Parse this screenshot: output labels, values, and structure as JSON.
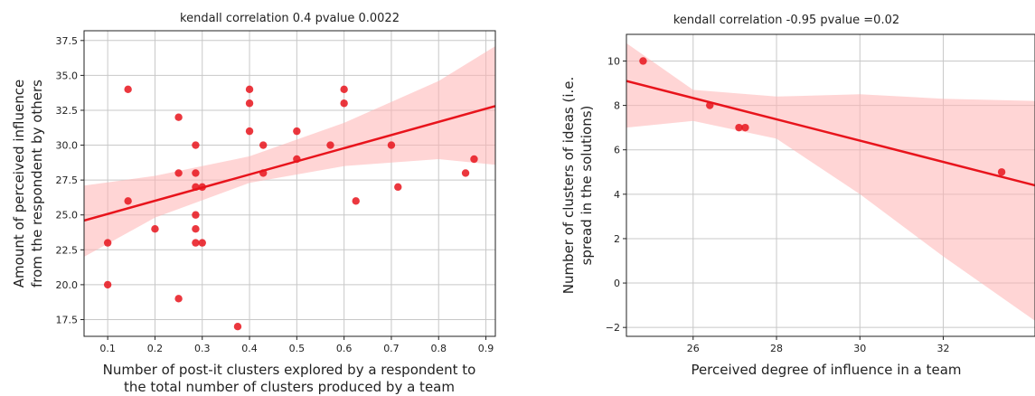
{
  "colors": {
    "points": "#e8141c",
    "fit": "#e8141c",
    "band": "#ffb3b3",
    "grid": "#c8c8c8"
  },
  "chart_data": [
    {
      "type": "scatter",
      "title": "kendall correlation 0.4 pvalue 0.0022",
      "xlabel_lines": [
        "Number of post-it clusters explored by a respondent to",
        "the total number of clusters produced by a team"
      ],
      "ylabel_lines": [
        "Amount of perceived influence",
        "from the respondent by others"
      ],
      "xlim": [
        0.05,
        0.92
      ],
      "ylim": [
        16.3,
        38.2
      ],
      "xticks": [
        0.1,
        0.2,
        0.3,
        0.4,
        0.5,
        0.6,
        0.7,
        0.8,
        0.9
      ],
      "xtick_labels": [
        "0.1",
        "0.2",
        "0.3",
        "0.4",
        "0.5",
        "0.6",
        "0.7",
        "0.8",
        "0.9"
      ],
      "yticks": [
        17.5,
        20.0,
        22.5,
        25.0,
        27.5,
        30.0,
        32.5,
        35.0,
        37.5
      ],
      "ytick_labels": [
        "17.5",
        "20.0",
        "22.5",
        "25.0",
        "27.5",
        "30.0",
        "32.5",
        "35.0",
        "37.5"
      ],
      "grid": true,
      "points": [
        [
          0.1,
          23
        ],
        [
          0.1,
          20
        ],
        [
          0.143,
          34
        ],
        [
          0.143,
          26
        ],
        [
          0.2,
          24
        ],
        [
          0.25,
          32
        ],
        [
          0.25,
          28
        ],
        [
          0.25,
          19
        ],
        [
          0.286,
          30
        ],
        [
          0.286,
          28
        ],
        [
          0.286,
          27
        ],
        [
          0.286,
          25
        ],
        [
          0.286,
          24
        ],
        [
          0.286,
          23
        ],
        [
          0.3,
          27
        ],
        [
          0.3,
          23
        ],
        [
          0.375,
          17
        ],
        [
          0.4,
          34
        ],
        [
          0.4,
          33
        ],
        [
          0.4,
          31
        ],
        [
          0.429,
          30
        ],
        [
          0.429,
          28
        ],
        [
          0.5,
          31
        ],
        [
          0.5,
          29
        ],
        [
          0.571,
          30
        ],
        [
          0.6,
          34
        ],
        [
          0.6,
          33
        ],
        [
          0.625,
          26
        ],
        [
          0.7,
          30
        ],
        [
          0.714,
          27
        ],
        [
          0.857,
          28
        ],
        [
          0.875,
          29
        ]
      ],
      "fit_line": {
        "x": [
          0.05,
          0.92
        ],
        "y": [
          24.6,
          32.8
        ]
      },
      "confidence_band": {
        "x": [
          0.05,
          0.2,
          0.4,
          0.6,
          0.8,
          0.92
        ],
        "lower": [
          22.0,
          24.8,
          27.3,
          28.5,
          29.0,
          28.6
        ],
        "upper": [
          27.1,
          27.8,
          29.2,
          31.6,
          34.6,
          37.1
        ]
      }
    },
    {
      "type": "scatter",
      "title": "kendall correlation -0.95 pvalue =0.02",
      "xlabel_lines": [
        "Perceived degree of influence in a team"
      ],
      "ylabel_lines": [
        "Number of clusters of ideas (i.e.",
        "spread in the solutions)"
      ],
      "xlim": [
        24.4,
        34.2
      ],
      "ylim": [
        -2.4,
        11.2
      ],
      "xticks": [
        26,
        28,
        30,
        32
      ],
      "xtick_labels": [
        "26",
        "28",
        "30",
        "32"
      ],
      "yticks": [
        -2,
        0,
        2,
        4,
        6,
        8,
        10
      ],
      "ytick_labels": [
        "−2",
        "0",
        "2",
        "4",
        "6",
        "8",
        "10"
      ],
      "grid": true,
      "points": [
        [
          24.8,
          10
        ],
        [
          26.4,
          8
        ],
        [
          27.1,
          7
        ],
        [
          27.25,
          7
        ],
        [
          33.4,
          5
        ]
      ],
      "fit_line": {
        "x": [
          24.4,
          34.2
        ],
        "y": [
          9.1,
          4.4
        ]
      },
      "confidence_band": {
        "x": [
          24.4,
          26,
          28,
          30,
          32,
          34.2
        ],
        "lower": [
          7.0,
          7.3,
          6.5,
          4.0,
          1.2,
          -1.7
        ],
        "upper": [
          10.8,
          8.7,
          8.4,
          8.5,
          8.3,
          8.2
        ]
      }
    }
  ]
}
